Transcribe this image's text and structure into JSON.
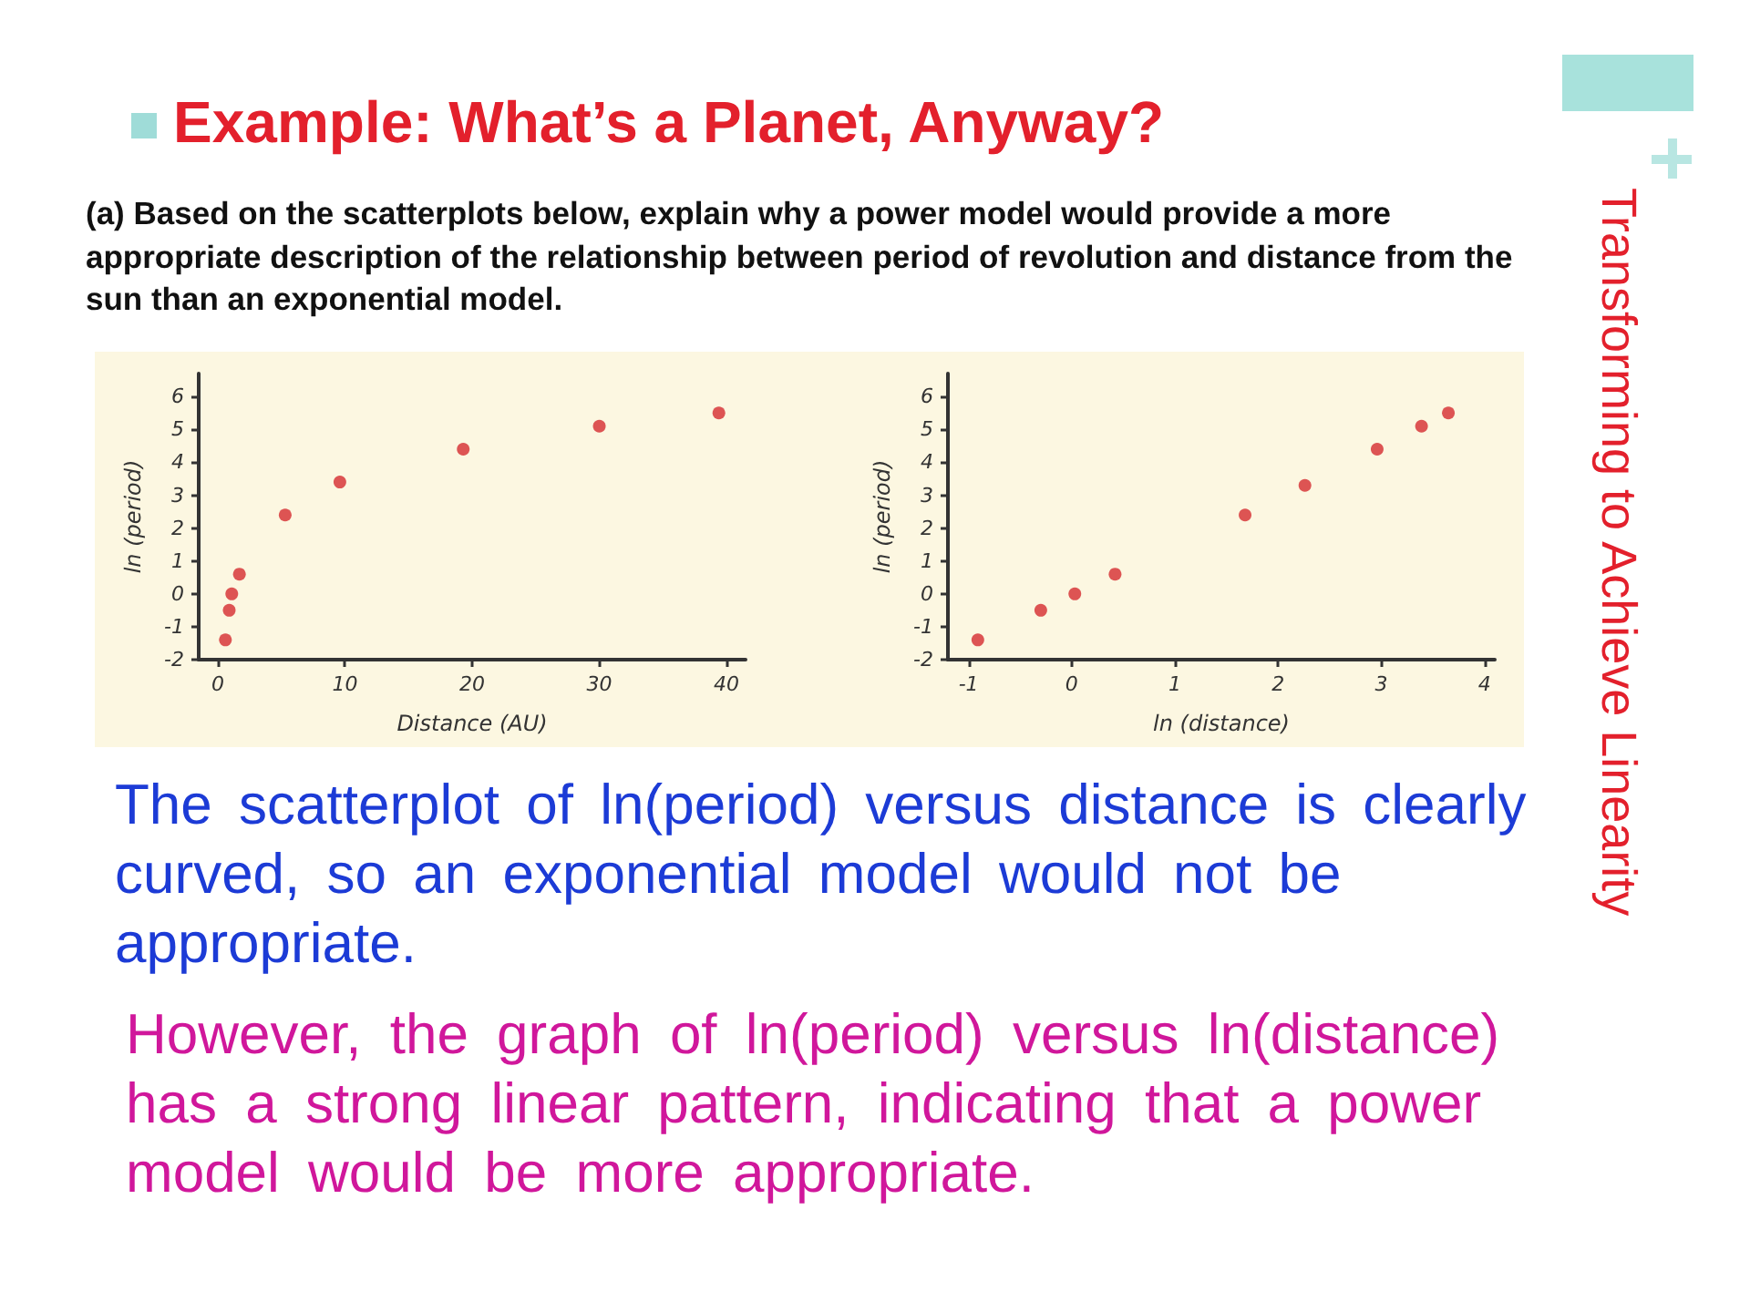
{
  "chart_data": [
    {
      "type": "scatter",
      "title": "Example: What’s a Planet, Anyway?",
      "subtitle": "(a) Based on the scatterplots below, explain why a power model would provide a more appropriate description of the relationship between period of revolution and distance from the sun than an exponential model.",
      "annotations": [
        "Transforming to Achieve Linearity",
        "The scatterplot of ln(period) versus distance is clearly curved, so an exponential model would not be appropriate."
      ],
      "xlabel": "Distance (AU)",
      "ylabel": "ln (period)",
      "x": [
        0.6,
        0.9,
        1.1,
        1.7,
        5.3,
        9.6,
        19.3,
        30.0,
        39.4
      ],
      "values": [
        -1.4,
        -0.5,
        0.0,
        0.6,
        2.4,
        3.4,
        4.4,
        5.1,
        5.5
      ],
      "color": "#d42a2f",
      "marker": "circle",
      "xlim": [
        -1.5,
        41.5
      ],
      "xticks": [
        0,
        10,
        20,
        30,
        40
      ],
      "ylim": [
        -2,
        6.7
      ],
      "yticks": [
        -2,
        -1,
        0,
        1,
        2,
        3,
        4,
        5,
        6
      ],
      "grid": false
    },
    {
      "type": "scatter",
      "annotations": [
        "However, the graph of ln(period) versus ln(distance) has a strong linear pattern, indicating that a power model would be more appropriate."
      ],
      "xlabel": "ln (distance)",
      "ylabel": "ln (period)",
      "x": [
        -0.91,
        -0.3,
        0.03,
        0.42,
        1.68,
        2.26,
        2.96,
        3.39,
        3.65
      ],
      "values": [
        -1.4,
        -0.5,
        0.0,
        0.6,
        2.4,
        3.3,
        4.4,
        5.1,
        5.5
      ],
      "color": "#d42a2f",
      "marker": "circle",
      "xlim": [
        -1.2,
        4.1
      ],
      "xticks": [
        -1,
        0,
        1,
        2,
        3,
        4
      ],
      "ylim": [
        -2,
        6.7
      ],
      "yticks": [
        -2,
        -1,
        0,
        1,
        2,
        3,
        4,
        5,
        6
      ],
      "grid": false
    }
  ]
}
